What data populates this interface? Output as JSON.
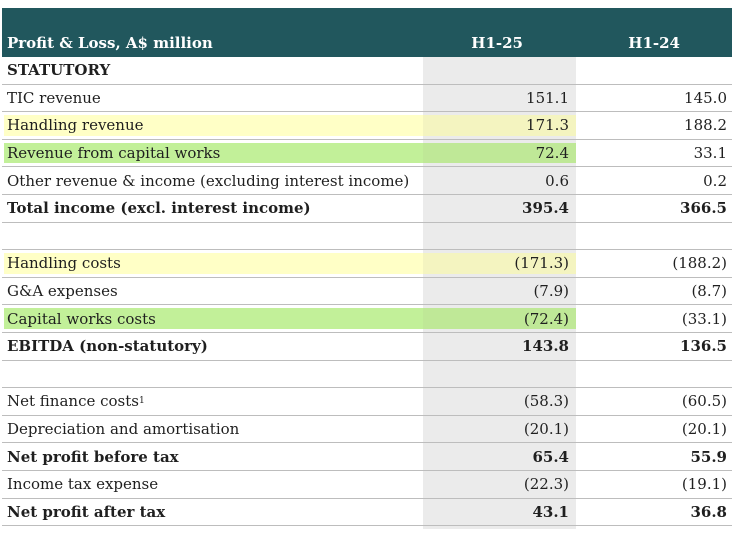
{
  "header": {
    "label": "Profit & Loss, A$ million",
    "col1": "H1-25",
    "col2": "H1-24"
  },
  "section": "STATUTORY",
  "rows": [
    {
      "label": "TIC revenue",
      "c1": "151.1",
      "c2": "145.0"
    },
    {
      "label": "Handling revenue",
      "c1": "171.3",
      "c2": "188.2",
      "highlight": "yellow"
    },
    {
      "label": "Revenue from capital works",
      "c1": "72.4",
      "c2": "33.1",
      "highlight": "green"
    },
    {
      "label": "Other revenue & income (excluding interest income)",
      "c1": "0.6",
      "c2": "0.2"
    },
    {
      "label": "Total income (excl. interest income)",
      "c1": "395.4",
      "c2": "366.5",
      "bold": true
    },
    {
      "label": "",
      "c1": "",
      "c2": ""
    },
    {
      "label": "Handling costs",
      "c1": "(171.3)",
      "c2": "(188.2)",
      "highlight": "yellow"
    },
    {
      "label": "G&A expenses",
      "c1": "(7.9)",
      "c2": "(8.7)"
    },
    {
      "label": "Capital works costs",
      "c1": "(72.4)",
      "c2": "(33.1)",
      "highlight": "green"
    },
    {
      "label": "EBITDA (non-statutory)",
      "c1": "143.8",
      "c2": "136.5",
      "bold": true
    },
    {
      "label": "",
      "c1": "",
      "c2": ""
    },
    {
      "label": "Net finance costs",
      "sup": "1",
      "c1": "(58.3)",
      "c2": "(60.5)"
    },
    {
      "label": "Depreciation and amortisation",
      "c1": "(20.1)",
      "c2": "(20.1)"
    },
    {
      "label": "Net profit before tax",
      "c1": "65.4",
      "c2": "55.9",
      "bold": true
    },
    {
      "label": "Income tax expense",
      "c1": "(22.3)",
      "c2": "(19.1)"
    },
    {
      "label": "Net profit after tax",
      "c1": "43.1",
      "c2": "36.8",
      "bold": true
    }
  ],
  "colors": {
    "header_bg": "#21575d",
    "highlight_yellow": "#ffffc6",
    "highlight_green": "#c2f099",
    "column_band": "#ebebeb"
  }
}
